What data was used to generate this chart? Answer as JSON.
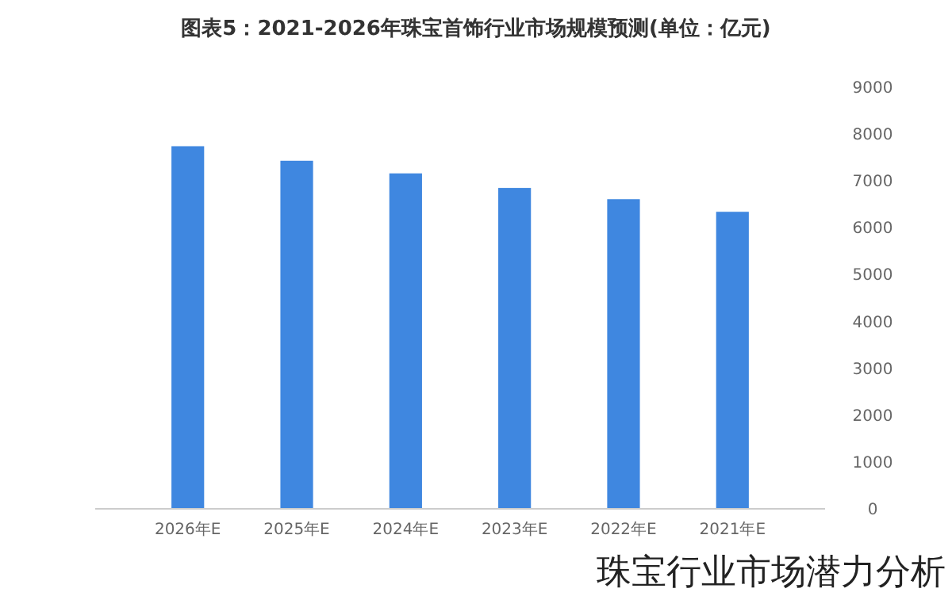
{
  "chart_data": {
    "type": "bar",
    "title": "图表5：2021-2026年珠宝首饰行业市场规模预测(单位：亿元)",
    "categories": [
      "2026年E",
      "2025年E",
      "2024年E",
      "2023年E",
      "2022年E",
      "2021年E"
    ],
    "values": [
      7740,
      7430,
      7160,
      6850,
      6610,
      6340
    ],
    "color": "#3f87e0",
    "ylim": [
      0,
      9000
    ],
    "yticks": [
      0,
      1000,
      2000,
      3000,
      4000,
      5000,
      6000,
      7000,
      8000,
      9000
    ],
    "grid": false,
    "annotations": [
      "珠宝行业市场潜力分析"
    ]
  }
}
